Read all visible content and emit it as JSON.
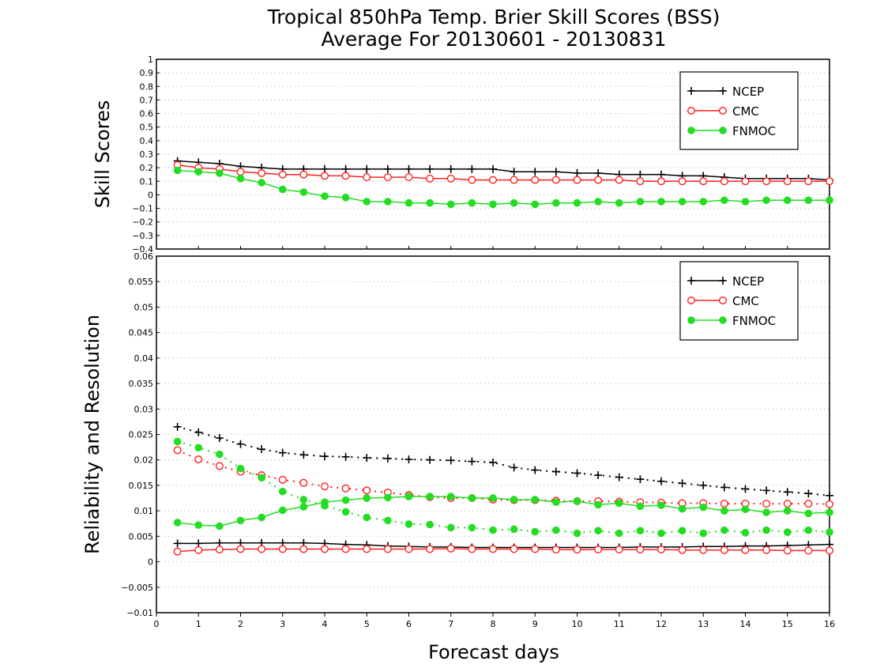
{
  "chart_data": {
    "title": "Tropical 850hPa Temp. Brier Skill Scores (BSS)",
    "subtitle": "Average For 20130601 - 20130831",
    "xlabel": "Forecast days",
    "xlim": [
      0,
      16
    ],
    "x_ticks": [
      "0",
      "1",
      "2",
      "3",
      "4",
      "5",
      "6",
      "7",
      "8",
      "9",
      "10",
      "11",
      "12",
      "13",
      "14",
      "15",
      "16"
    ],
    "x": [
      0.5,
      1,
      1.5,
      2,
      2.5,
      3,
      3.5,
      4,
      4.5,
      5,
      5.5,
      6,
      6.5,
      7,
      7.5,
      8,
      8.5,
      9,
      9.5,
      10,
      10.5,
      11,
      11.5,
      12,
      12.5,
      13,
      13.5,
      14,
      14.5,
      15,
      15.5,
      16
    ],
    "grid": true,
    "panels": [
      {
        "type": "line",
        "ylabel": "Skill Scores",
        "ylim": [
          -0.4,
          1
        ],
        "y_ticks": [
          "−0.4",
          "−0.3",
          "−0.2",
          "−0.1",
          "0",
          "0.1",
          "0.2",
          "0.3",
          "0.4",
          "0.5",
          "0.6",
          "0.7",
          "0.8",
          "0.9",
          "1"
        ],
        "legend": [
          "NCEP",
          "CMC",
          "FNMOC"
        ],
        "legend_position": "top-right",
        "series": [
          {
            "name": "NCEP",
            "color": "#000000",
            "marker": "plus",
            "style": "solid",
            "values": [
              0.25,
              0.24,
              0.23,
              0.21,
              0.2,
              0.19,
              0.19,
              0.19,
              0.19,
              0.19,
              0.19,
              0.19,
              0.19,
              0.19,
              0.19,
              0.19,
              0.17,
              0.17,
              0.17,
              0.16,
              0.16,
              0.15,
              0.15,
              0.15,
              0.14,
              0.14,
              0.13,
              0.12,
              0.12,
              0.12,
              0.12,
              0.11
            ]
          },
          {
            "name": "CMC",
            "color": "#ff2020",
            "marker": "open-circle",
            "style": "solid",
            "values": [
              0.22,
              0.2,
              0.19,
              0.17,
              0.16,
              0.15,
              0.15,
              0.14,
              0.14,
              0.13,
              0.13,
              0.13,
              0.12,
              0.12,
              0.11,
              0.11,
              0.11,
              0.11,
              0.11,
              0.11,
              0.11,
              0.11,
              0.1,
              0.1,
              0.1,
              0.1,
              0.1,
              0.1,
              0.1,
              0.1,
              0.1,
              0.1
            ]
          },
          {
            "name": "FNMOC",
            "color": "#22dd22",
            "marker": "filled-circle",
            "style": "solid",
            "values": [
              0.18,
              0.17,
              0.16,
              0.12,
              0.09,
              0.04,
              0.02,
              -0.01,
              -0.02,
              -0.05,
              -0.05,
              -0.06,
              -0.06,
              -0.07,
              -0.06,
              -0.07,
              -0.06,
              -0.07,
              -0.06,
              -0.06,
              -0.05,
              -0.06,
              -0.05,
              -0.05,
              -0.05,
              -0.05,
              -0.04,
              -0.05,
              -0.04,
              -0.04,
              -0.04,
              -0.04
            ]
          }
        ]
      },
      {
        "type": "line",
        "ylabel": "Reliability and Resolution",
        "ylim": [
          -0.01,
          0.06
        ],
        "y_ticks": [
          "−0.01",
          "−0.005",
          "0",
          "0.005",
          "0.01",
          "0.015",
          "0.02",
          "0.025",
          "0.03",
          "0.035",
          "0.04",
          "0.045",
          "0.05",
          "0.055",
          "0.06"
        ],
        "legend": [
          "NCEP",
          "CMC",
          "FNMOC"
        ],
        "legend_position": "top-right",
        "series": [
          {
            "name": "NCEP",
            "color": "#000000",
            "marker": "plus",
            "style": "dotted",
            "values": [
              0.0265,
              0.0254,
              0.0243,
              0.0231,
              0.0221,
              0.0214,
              0.021,
              0.0207,
              0.0206,
              0.0204,
              0.0203,
              0.0201,
              0.02,
              0.0199,
              0.0197,
              0.0195,
              0.0185,
              0.018,
              0.0177,
              0.0174,
              0.017,
              0.0166,
              0.0162,
              0.0158,
              0.0154,
              0.015,
              0.0146,
              0.0143,
              0.014,
              0.0137,
              0.0134,
              0.013
            ]
          },
          {
            "name": "NCEP",
            "color": "#000000",
            "marker": "plus",
            "style": "solid",
            "values": [
              0.0036,
              0.0036,
              0.0037,
              0.0037,
              0.0037,
              0.0037,
              0.0037,
              0.0036,
              0.0034,
              0.0033,
              0.0031,
              0.003,
              0.0029,
              0.0029,
              0.0028,
              0.0028,
              0.0028,
              0.0028,
              0.0028,
              0.0028,
              0.0028,
              0.0028,
              0.0029,
              0.0029,
              0.0029,
              0.003,
              0.003,
              0.0031,
              0.0031,
              0.0032,
              0.0033,
              0.0034
            ]
          },
          {
            "name": "CMC",
            "color": "#ff2020",
            "marker": "open-circle",
            "style": "dotted",
            "values": [
              0.0219,
              0.0201,
              0.0188,
              0.0177,
              0.017,
              0.0161,
              0.0155,
              0.0148,
              0.0144,
              0.014,
              0.0136,
              0.0131,
              0.0127,
              0.0125,
              0.0125,
              0.0122,
              0.0121,
              0.0121,
              0.012,
              0.0119,
              0.0119,
              0.0118,
              0.0117,
              0.0116,
              0.0115,
              0.0115,
              0.0114,
              0.0114,
              0.0114,
              0.0114,
              0.0114,
              0.0113
            ]
          },
          {
            "name": "CMC",
            "color": "#ff2020",
            "marker": "open-circle",
            "style": "solid",
            "values": [
              0.002,
              0.0023,
              0.0024,
              0.0025,
              0.0025,
              0.0025,
              0.0025,
              0.0025,
              0.0025,
              0.0025,
              0.0025,
              0.0025,
              0.0025,
              0.0026,
              0.0025,
              0.0025,
              0.0025,
              0.0025,
              0.0024,
              0.0024,
              0.0024,
              0.0024,
              0.0024,
              0.0024,
              0.0023,
              0.0023,
              0.0023,
              0.0023,
              0.0023,
              0.0022,
              0.0022,
              0.0022
            ]
          },
          {
            "name": "FNMOC",
            "color": "#22dd22",
            "marker": "filled-circle",
            "style": "dotted",
            "values": [
              0.0236,
              0.0224,
              0.0211,
              0.0183,
              0.0165,
              0.0138,
              0.0122,
              0.011,
              0.0098,
              0.0087,
              0.0081,
              0.0074,
              0.0073,
              0.0067,
              0.0067,
              0.0062,
              0.0064,
              0.0059,
              0.0062,
              0.0056,
              0.0061,
              0.0056,
              0.0061,
              0.0056,
              0.0061,
              0.0056,
              0.0062,
              0.0057,
              0.0062,
              0.0058,
              0.0062,
              0.0058
            ]
          },
          {
            "name": "FNMOC",
            "color": "#22dd22",
            "marker": "filled-circle",
            "style": "solid",
            "values": [
              0.0077,
              0.0072,
              0.007,
              0.0081,
              0.0087,
              0.0101,
              0.0108,
              0.0117,
              0.0121,
              0.0125,
              0.0126,
              0.0128,
              0.0128,
              0.0128,
              0.0125,
              0.0125,
              0.0122,
              0.0122,
              0.0117,
              0.0119,
              0.0112,
              0.0115,
              0.0109,
              0.0111,
              0.0104,
              0.0107,
              0.01,
              0.0103,
              0.0097,
              0.01,
              0.0095,
              0.0097
            ]
          }
        ]
      }
    ]
  }
}
